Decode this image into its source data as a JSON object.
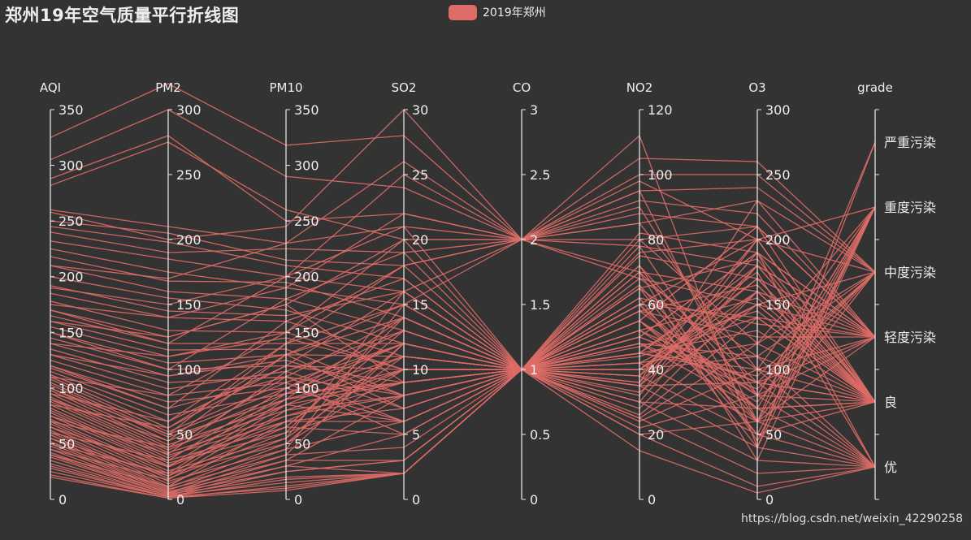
{
  "title": "郑州19年空气质量平行折线图",
  "legend": {
    "label": "2019年郑州",
    "color": "#dd6b66"
  },
  "watermark": "https://blog.csdn.net/weixin_42290258",
  "colors": {
    "background": "#333333",
    "line": "#dd6b66",
    "axis": "#eeeeee",
    "text": "#eeeeee"
  },
  "chart_data": {
    "type": "parallel",
    "series": [
      {
        "name": "2019年郑州"
      }
    ],
    "axes": [
      {
        "name": "AQI",
        "min": 0,
        "max": 350,
        "ticks": [
          0,
          50,
          100,
          150,
          200,
          250,
          300,
          350
        ]
      },
      {
        "name": "PM2",
        "min": 0,
        "max": 300,
        "ticks": [
          0,
          50,
          100,
          150,
          200,
          250,
          300
        ]
      },
      {
        "name": "PM10",
        "min": 0,
        "max": 350,
        "ticks": [
          0,
          50,
          100,
          150,
          200,
          250,
          300,
          350
        ]
      },
      {
        "name": "SO2",
        "min": 0,
        "max": 30,
        "ticks": [
          0,
          5,
          10,
          15,
          20,
          25,
          30
        ]
      },
      {
        "name": "CO",
        "min": 0,
        "max": 3,
        "ticks": [
          0,
          0.5,
          1,
          1.5,
          2,
          2.5,
          3
        ]
      },
      {
        "name": "NO2",
        "min": 0,
        "max": 120,
        "ticks": [
          0,
          20,
          40,
          60,
          80,
          100,
          120
        ]
      },
      {
        "name": "O3",
        "min": 0,
        "max": 300,
        "ticks": [
          0,
          50,
          100,
          150,
          200,
          250,
          300
        ]
      },
      {
        "name": "grade",
        "type": "category",
        "categories": [
          "优",
          "良",
          "轻度污染",
          "中度污染",
          "重度污染",
          "严重污染"
        ]
      }
    ],
    "records": [
      [
        325,
        320,
        318,
        28,
        2,
        112,
        40,
        "严重污染"
      ],
      [
        305,
        300,
        290,
        24,
        2,
        95,
        60,
        "严重污染"
      ],
      [
        288,
        280,
        250,
        22,
        2,
        90,
        80,
        "重度污染"
      ],
      [
        282,
        275,
        260,
        20,
        2,
        85,
        100,
        "重度污染"
      ],
      [
        260,
        210,
        230,
        21,
        1,
        80,
        120,
        "重度污染"
      ],
      [
        258,
        200,
        245,
        30,
        2,
        70,
        30,
        "重度污染"
      ],
      [
        250,
        205,
        215,
        18,
        2,
        78,
        60,
        "重度污染"
      ],
      [
        245,
        198,
        210,
        17,
        1,
        65,
        50,
        "重度污染"
      ],
      [
        240,
        190,
        225,
        19,
        1,
        72,
        45,
        "重度污染"
      ],
      [
        232,
        185,
        200,
        16,
        1,
        60,
        70,
        "重度污染"
      ],
      [
        225,
        175,
        190,
        15,
        1,
        58,
        80,
        "重度污染"
      ],
      [
        218,
        168,
        195,
        14,
        1,
        62,
        40,
        "重度污染"
      ],
      [
        210,
        160,
        180,
        13,
        1,
        55,
        60,
        "中度污染"
      ],
      [
        200,
        155,
        170,
        12,
        1,
        50,
        90,
        "中度污染"
      ],
      [
        192,
        145,
        165,
        16,
        2,
        68,
        110,
        "中度污染"
      ],
      [
        185,
        140,
        160,
        11,
        1,
        52,
        75,
        "中度污染"
      ],
      [
        178,
        130,
        150,
        10,
        1,
        48,
        85,
        "中度污染"
      ],
      [
        170,
        125,
        175,
        9,
        1,
        45,
        95,
        "中度污染"
      ],
      [
        165,
        120,
        140,
        12,
        1,
        42,
        120,
        "中度污染"
      ],
      [
        160,
        115,
        135,
        8,
        1,
        40,
        150,
        "中度污染"
      ],
      [
        155,
        110,
        145,
        10,
        1,
        38,
        200,
        "中度污染"
      ],
      [
        150,
        105,
        130,
        7,
        1,
        36,
        230,
        "轻度污染"
      ],
      [
        145,
        100,
        120,
        9,
        1,
        55,
        210,
        "轻度污染"
      ],
      [
        140,
        95,
        125,
        8,
        1,
        50,
        190,
        "轻度污染"
      ],
      [
        135,
        90,
        110,
        6,
        1,
        45,
        180,
        "轻度污染"
      ],
      [
        130,
        85,
        115,
        7,
        1,
        40,
        170,
        "轻度污染"
      ],
      [
        125,
        80,
        105,
        5,
        1,
        35,
        160,
        "轻度污染"
      ],
      [
        120,
        75,
        100,
        6,
        1,
        33,
        150,
        "轻度污染"
      ],
      [
        118,
        70,
        110,
        8,
        1,
        60,
        140,
        "轻度污染"
      ],
      [
        115,
        65,
        95,
        9,
        1,
        62,
        135,
        "轻度污染"
      ],
      [
        112,
        60,
        120,
        10,
        1,
        58,
        125,
        "轻度污染"
      ],
      [
        110,
        55,
        130,
        11,
        1,
        65,
        100,
        "轻度污染"
      ],
      [
        108,
        52,
        105,
        12,
        1,
        70,
        90,
        "轻度污染"
      ],
      [
        105,
        50,
        100,
        13,
        1,
        72,
        80,
        "轻度污染"
      ],
      [
        103,
        48,
        90,
        14,
        1,
        66,
        60,
        "轻度污染"
      ],
      [
        100,
        45,
        95,
        12,
        1,
        60,
        50,
        "良"
      ],
      [
        98,
        42,
        85,
        11,
        1,
        55,
        70,
        "良"
      ],
      [
        95,
        40,
        80,
        10,
        1,
        52,
        90,
        "良"
      ],
      [
        92,
        38,
        90,
        9,
        1,
        48,
        110,
        "良"
      ],
      [
        90,
        36,
        75,
        8,
        1,
        45,
        130,
        "良"
      ],
      [
        88,
        34,
        70,
        7,
        1,
        44,
        140,
        "良"
      ],
      [
        85,
        32,
        85,
        6,
        1,
        42,
        150,
        "良"
      ],
      [
        82,
        30,
        65,
        5,
        1,
        40,
        160,
        "良"
      ],
      [
        80,
        28,
        60,
        8,
        1,
        38,
        170,
        "良"
      ],
      [
        78,
        26,
        75,
        9,
        1,
        36,
        180,
        "良"
      ],
      [
        75,
        25,
        70,
        10,
        1,
        35,
        190,
        "良"
      ],
      [
        72,
        22,
        55,
        11,
        1,
        32,
        200,
        "良"
      ],
      [
        70,
        20,
        50,
        12,
        1,
        30,
        180,
        "良"
      ],
      [
        68,
        18,
        65,
        13,
        1,
        28,
        160,
        "良"
      ],
      [
        65,
        16,
        60,
        14,
        1,
        26,
        140,
        "良"
      ],
      [
        62,
        14,
        45,
        15,
        1,
        25,
        120,
        "良"
      ],
      [
        60,
        12,
        55,
        16,
        1,
        24,
        100,
        "良"
      ],
      [
        58,
        10,
        40,
        12,
        1,
        22,
        80,
        "良"
      ],
      [
        55,
        9,
        50,
        10,
        1,
        20,
        60,
        "良"
      ],
      [
        52,
        8,
        35,
        8,
        1,
        30,
        70,
        "良"
      ],
      [
        50,
        7,
        45,
        6,
        1,
        35,
        90,
        "良"
      ],
      [
        48,
        6,
        30,
        5,
        1,
        40,
        110,
        "优"
      ],
      [
        45,
        5,
        40,
        4,
        1,
        45,
        100,
        "优"
      ],
      [
        42,
        5,
        25,
        3,
        1,
        50,
        90,
        "优"
      ],
      [
        40,
        4,
        35,
        3,
        1,
        55,
        80,
        "优"
      ],
      [
        38,
        4,
        20,
        2,
        1,
        48,
        70,
        "优"
      ],
      [
        35,
        3,
        30,
        2,
        1,
        42,
        60,
        "优"
      ],
      [
        32,
        3,
        15,
        2,
        1,
        38,
        50,
        "优"
      ],
      [
        30,
        2,
        25,
        3,
        1,
        35,
        40,
        "优"
      ],
      [
        28,
        2,
        18,
        2,
        1,
        30,
        30,
        "优"
      ],
      [
        25,
        2,
        10,
        2,
        1,
        25,
        20,
        "优"
      ],
      [
        22,
        1,
        12,
        2,
        1,
        20,
        10,
        "优"
      ],
      [
        20,
        1,
        8,
        2,
        1,
        15,
        5,
        "优"
      ],
      [
        130,
        95,
        130,
        15,
        2,
        88,
        210,
        "轻度污染"
      ],
      [
        140,
        110,
        150,
        18,
        2,
        92,
        220,
        "轻度污染"
      ],
      [
        160,
        125,
        175,
        20,
        2,
        95,
        240,
        "中度污染"
      ],
      [
        175,
        140,
        190,
        22,
        2,
        100,
        250,
        "中度污染"
      ],
      [
        190,
        150,
        200,
        25,
        2,
        105,
        260,
        "中度污染"
      ],
      [
        210,
        170,
        230,
        26,
        2,
        98,
        200,
        "重度污染"
      ],
      [
        110,
        80,
        150,
        20,
        1,
        78,
        180,
        "轻度污染"
      ],
      [
        95,
        60,
        140,
        18,
        1,
        75,
        170,
        "良"
      ],
      [
        85,
        55,
        120,
        16,
        1,
        70,
        160,
        "良"
      ],
      [
        70,
        40,
        110,
        14,
        1,
        68,
        150,
        "良"
      ],
      [
        60,
        30,
        100,
        12,
        1,
        60,
        200,
        "良"
      ],
      [
        50,
        20,
        90,
        10,
        1,
        55,
        210,
        "良"
      ],
      [
        45,
        15,
        80,
        8,
        1,
        50,
        190,
        "优"
      ],
      [
        40,
        10,
        70,
        6,
        1,
        45,
        175,
        "优"
      ],
      [
        120,
        70,
        160,
        17,
        1,
        82,
        190,
        "轻度污染"
      ],
      [
        100,
        50,
        140,
        15,
        1,
        76,
        200,
        "良"
      ],
      [
        150,
        100,
        180,
        19,
        2,
        80,
        210,
        "轻度污染"
      ],
      [
        170,
        120,
        200,
        21,
        2,
        85,
        230,
        "中度污染"
      ],
      [
        90,
        45,
        130,
        14,
        1,
        65,
        185,
        "良"
      ],
      [
        75,
        35,
        115,
        13,
        1,
        58,
        165,
        "良"
      ],
      [
        65,
        25,
        95,
        11,
        1,
        52,
        155,
        "良"
      ],
      [
        55,
        18,
        85,
        9,
        1,
        47,
        145,
        "良"
      ]
    ]
  }
}
